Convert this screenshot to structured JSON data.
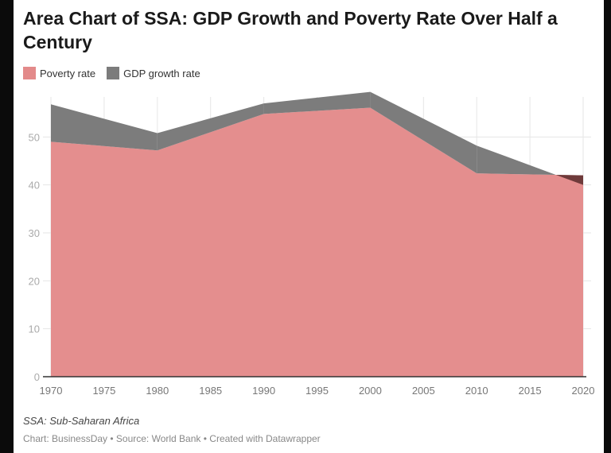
{
  "chart_data": {
    "type": "area",
    "stacked": true,
    "title": "Area Chart of SSA: GDP Growth and Poverty Rate Over Half a Century",
    "x": [
      1970,
      1980,
      1990,
      2000,
      2010,
      2020
    ],
    "series": [
      {
        "name": "Poverty rate",
        "values": [
          49,
          47.2,
          54.8,
          56.1,
          42.4,
          42
        ],
        "color": "#e38a8a"
      },
      {
        "name": "GDP growth rate",
        "values": [
          7.8,
          3.6,
          2.2,
          3.3,
          5.8,
          -2
        ],
        "color": "#7c7c7c",
        "negative_color": "#6e3a3a"
      }
    ],
    "xticks": [
      "1970",
      "1975",
      "1980",
      "1985",
      "1990",
      "1995",
      "2000",
      "2005",
      "2010",
      "2015",
      "2020"
    ],
    "yticks": [
      "0",
      "10",
      "20",
      "30",
      "40",
      "50"
    ],
    "xlim": [
      1970,
      2020
    ],
    "ylim": [
      0,
      60
    ],
    "grid": true,
    "legend": "top-left",
    "note": "SSA: Sub-Saharan Africa",
    "credit": "Chart: BusinessDay • Source: World Bank • Created with Datawrapper"
  }
}
